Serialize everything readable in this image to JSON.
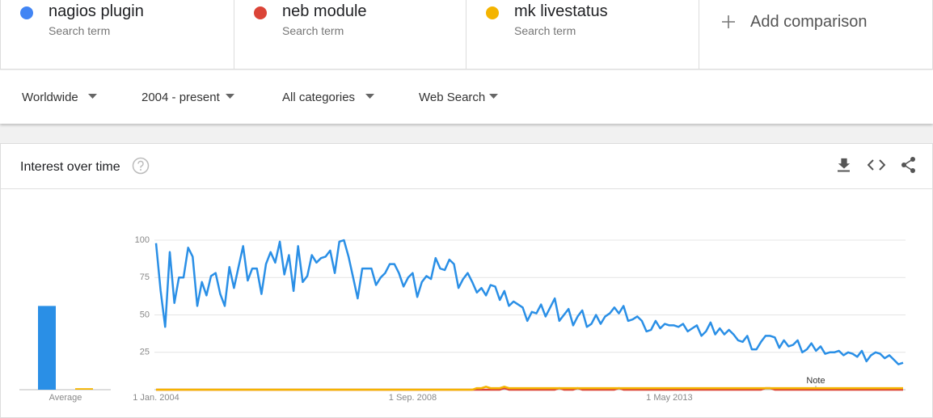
{
  "filters": [
    "Worldwide",
    "2004 - present",
    "All categories",
    "Web Search"
  ],
  "add_comparison": "Add comparison",
  "panel_title": "Interest over time",
  "chart_data": {
    "type": "line",
    "average_label": "Average",
    "annotation": "Note",
    "ylim": [
      0,
      100
    ],
    "yticks": [
      25,
      50,
      75,
      100
    ],
    "grid": true,
    "categories": [
      "1 Jan. 2004",
      null,
      null,
      null,
      null,
      null,
      null,
      null,
      null,
      null,
      null,
      null,
      null,
      null,
      null,
      null,
      null,
      null,
      null,
      null,
      null,
      null,
      null,
      null,
      null,
      null,
      null,
      null,
      null,
      null,
      null,
      null,
      null,
      null,
      null,
      null,
      null,
      null,
      null,
      null,
      null,
      null,
      null,
      null,
      null,
      null,
      null,
      null,
      null,
      null,
      null,
      null,
      null,
      null,
      null,
      null,
      "1 Sep. 2008",
      null,
      null,
      null,
      null,
      null,
      null,
      null,
      null,
      null,
      null,
      null,
      null,
      null,
      null,
      null,
      null,
      null,
      null,
      null,
      null,
      null,
      null,
      null,
      null,
      null,
      null,
      null,
      null,
      null,
      null,
      null,
      null,
      null,
      null,
      null,
      null,
      null,
      null,
      null,
      null,
      null,
      null,
      null,
      null,
      null,
      null,
      null,
      null,
      null,
      null,
      null,
      null,
      null,
      null,
      null,
      "1 May 2013",
      null,
      null,
      null,
      null,
      null,
      null,
      null,
      null,
      null,
      null,
      null,
      null,
      null,
      null,
      null,
      null,
      null,
      null,
      null,
      null,
      null,
      null,
      null,
      null,
      null,
      null,
      null,
      null,
      null,
      null,
      null,
      null,
      null,
      null,
      null,
      null,
      null,
      null,
      null,
      null,
      null,
      null,
      null,
      null,
      null,
      null,
      null,
      null,
      null,
      null,
      null
    ],
    "series": [
      {
        "name": "nagios plugin",
        "subtitle": "Search term",
        "color": "#2a8fe6",
        "dot_color": "#4285f4",
        "average": 56,
        "values": [
          98,
          66,
          42,
          92,
          58,
          75,
          75,
          95,
          89,
          56,
          72,
          63,
          76,
          78,
          64,
          56,
          82,
          68,
          82,
          96,
          73,
          81,
          81,
          64,
          84,
          92,
          85,
          99,
          77,
          90,
          66,
          96,
          72,
          76,
          90,
          85,
          88,
          89,
          93,
          78,
          99,
          100,
          89,
          75,
          61,
          81,
          81,
          81,
          70,
          75,
          78,
          84,
          84,
          78,
          69,
          75,
          78,
          62,
          72,
          76,
          74,
          88,
          81,
          80,
          87,
          84,
          68,
          74,
          78,
          72,
          65,
          68,
          63,
          70,
          69,
          60,
          66,
          56,
          59,
          57,
          55,
          46,
          52,
          51,
          57,
          49,
          55,
          61,
          46,
          50,
          54,
          43,
          49,
          53,
          42,
          44,
          50,
          44,
          49,
          51,
          55,
          51,
          56,
          46,
          47,
          49,
          46,
          39,
          40,
          46,
          41,
          44,
          43,
          43,
          42,
          44,
          39,
          41,
          43,
          36,
          39,
          45,
          37,
          41,
          37,
          40,
          37,
          33,
          32,
          36,
          27,
          27,
          32,
          36,
          36,
          35,
          28,
          33,
          29,
          30,
          33,
          25,
          27,
          31,
          26,
          29,
          24,
          25,
          25,
          26,
          23,
          25,
          24,
          22,
          26,
          19,
          23,
          25,
          24,
          21,
          23,
          20,
          17,
          18
        ]
      },
      {
        "name": "neb module",
        "subtitle": "Search term",
        "color": "#db4437",
        "dot_color": "#db4437",
        "average": 0,
        "values": [
          0,
          0,
          0,
          0,
          0,
          0,
          0,
          0,
          0,
          0,
          0,
          0,
          0,
          0,
          0,
          0,
          0,
          0,
          0,
          0,
          0,
          0,
          0,
          0,
          0,
          0,
          0,
          0,
          0,
          0,
          0,
          0,
          0,
          0,
          0,
          0,
          0,
          0,
          0,
          0,
          0,
          0,
          0,
          0,
          0,
          0,
          0,
          0,
          0,
          0,
          0,
          0,
          0,
          0,
          0,
          0,
          0,
          0,
          0,
          0,
          0,
          0,
          0,
          0,
          0,
          0,
          0,
          0,
          0,
          0,
          0,
          0,
          0,
          0,
          0,
          0,
          1,
          0,
          0,
          0,
          0,
          0,
          0,
          0,
          0,
          0,
          0,
          0,
          1,
          0,
          0,
          0,
          1,
          0,
          0,
          0,
          0,
          0,
          0,
          0,
          0,
          1,
          0,
          0,
          0,
          0,
          0,
          0,
          0,
          0,
          0,
          0,
          0,
          0,
          0,
          0,
          0,
          0,
          0,
          0,
          0,
          0,
          0,
          0,
          0,
          0,
          0,
          0,
          0,
          0,
          0,
          0,
          0,
          1,
          1,
          0,
          0,
          0,
          0,
          0,
          0,
          0,
          0,
          0,
          0,
          0,
          0,
          0,
          0,
          0,
          0,
          0,
          0,
          0,
          0,
          0,
          0,
          0,
          0,
          0,
          0,
          0,
          0,
          0
        ]
      },
      {
        "name": "mk livestatus",
        "subtitle": "Search term",
        "color": "#f4b400",
        "dot_color": "#f4b400",
        "average": 1,
        "values": [
          0,
          0,
          0,
          0,
          0,
          0,
          0,
          0,
          0,
          0,
          0,
          0,
          0,
          0,
          0,
          0,
          0,
          0,
          0,
          0,
          0,
          0,
          0,
          0,
          0,
          0,
          0,
          0,
          0,
          0,
          0,
          0,
          0,
          0,
          0,
          0,
          0,
          0,
          0,
          0,
          0,
          0,
          0,
          0,
          0,
          0,
          0,
          0,
          0,
          0,
          0,
          0,
          0,
          0,
          0,
          0,
          0,
          0,
          0,
          0,
          0,
          0,
          0,
          0,
          0,
          0,
          0,
          0,
          0,
          0,
          1,
          1,
          2,
          1,
          1,
          1,
          2,
          1,
          1,
          1,
          1,
          1,
          1,
          1,
          1,
          1,
          1,
          1,
          1,
          1,
          1,
          1,
          1,
          1,
          1,
          1,
          1,
          1,
          1,
          1,
          1,
          1,
          1,
          1,
          1,
          1,
          1,
          1,
          1,
          1,
          1,
          1,
          1,
          1,
          1,
          1,
          1,
          1,
          1,
          1,
          1,
          1,
          1,
          1,
          1,
          1,
          1,
          1,
          1,
          1,
          1,
          1,
          1,
          1,
          1,
          1,
          1,
          1,
          1,
          1,
          1,
          1,
          1,
          1,
          1,
          1,
          1,
          1,
          1,
          1,
          1,
          1,
          1,
          1,
          1,
          1,
          1,
          1,
          1,
          1,
          1,
          1,
          1,
          1
        ]
      }
    ]
  }
}
